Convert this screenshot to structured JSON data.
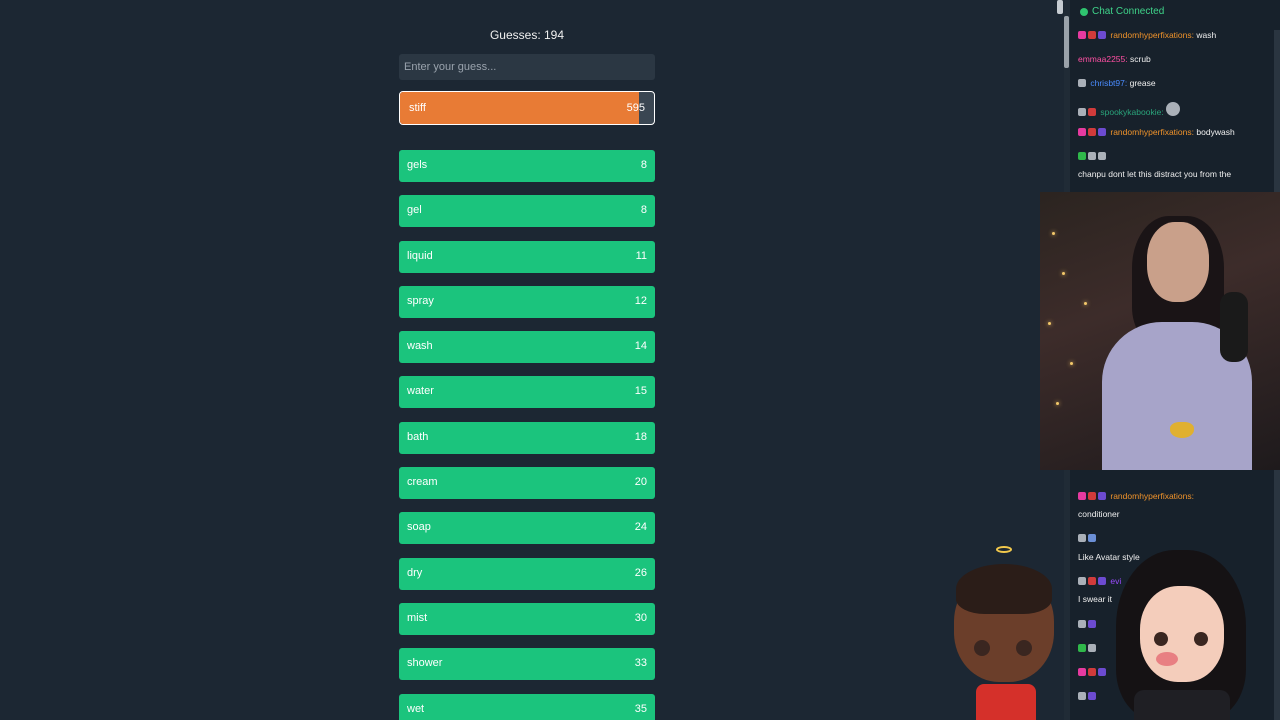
{
  "game": {
    "guess_count": "Guesses: 194",
    "input_placeholder": "Enter your guess...",
    "current": {
      "word": "stiff",
      "rank": "595",
      "fill": 0.94
    },
    "guesses": [
      {
        "word": "gels",
        "rank": "8"
      },
      {
        "word": "gel",
        "rank": "8"
      },
      {
        "word": "liquid",
        "rank": "11"
      },
      {
        "word": "spray",
        "rank": "12"
      },
      {
        "word": "wash",
        "rank": "14"
      },
      {
        "word": "water",
        "rank": "15"
      },
      {
        "word": "bath",
        "rank": "18"
      },
      {
        "word": "cream",
        "rank": "20"
      },
      {
        "word": "soap",
        "rank": "24"
      },
      {
        "word": "dry",
        "rank": "26"
      },
      {
        "word": "mist",
        "rank": "30"
      },
      {
        "word": "shower",
        "rank": "33"
      },
      {
        "word": "wet",
        "rank": "35"
      }
    ],
    "colors": {
      "current": "#e87b35",
      "close": "#1bc47d"
    }
  },
  "chat": {
    "status": "Chat Connected",
    "messages": [
      {
        "user": "randomhyperfixations:",
        "text": "wash"
      },
      {
        "user": "emmaa2255:",
        "text": "scrub"
      },
      {
        "user": "chrisbt97:",
        "text": "grease"
      },
      {
        "user": "spookykabookie:",
        "text": ""
      },
      {
        "user": "randomhyperfixations:",
        "text": "bodywash"
      },
      {
        "user": "",
        "text": "chanpu dont let this distract you from the"
      },
      {
        "user": "randomhyperfixations:",
        "text": ""
      },
      {
        "user": "",
        "text": "conditioner"
      },
      {
        "user": "",
        "text": "Like Avatar style"
      },
      {
        "user": "evi",
        "text": ""
      },
      {
        "user": "",
        "text": "I swear it"
      }
    ]
  }
}
